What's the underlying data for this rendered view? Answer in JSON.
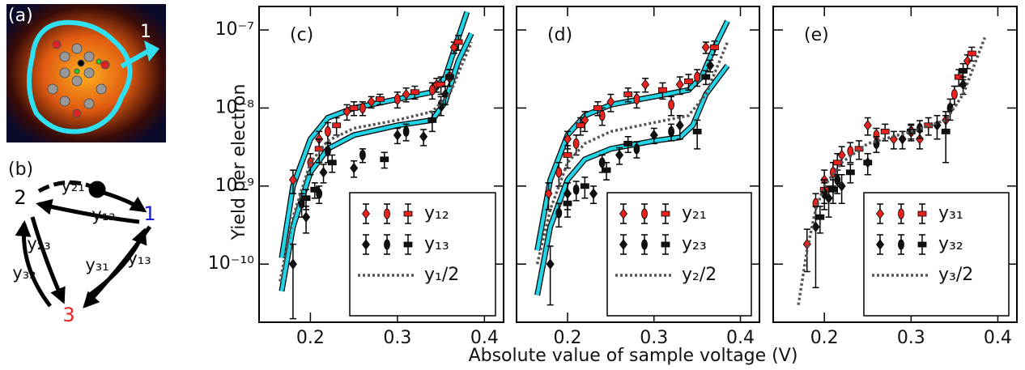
{
  "image": {
    "label": "(a)",
    "tip_label": "1"
  },
  "diagram": {
    "label": "(b)",
    "nodes": [
      {
        "label": "1",
        "color": "#1a1ad6"
      },
      {
        "label": "2",
        "color": "#000000"
      },
      {
        "label": "3",
        "color": "#e8221f"
      }
    ],
    "edges": [
      {
        "label": "y₂₁"
      },
      {
        "label": "y₁₂"
      },
      {
        "label": "y₂₃"
      },
      {
        "label": "y₃₂"
      },
      {
        "label": "y₃₁"
      },
      {
        "label": "y₁₃"
      }
    ]
  },
  "figure": {
    "ylabel": "Yield per electron",
    "xlabel": "Absolute value of sample voltage (V)"
  },
  "chart_data": [
    {
      "type": "scatter",
      "label": "(c)",
      "log_y": true,
      "xlim": [
        0.141,
        0.422
      ],
      "xticks": [
        0.2,
        0.3,
        0.4
      ],
      "ylim": [
        1.8e-11,
        2e-07
      ],
      "yticks": [
        {
          "value": 1e-10,
          "label": "10⁻¹⁰"
        },
        {
          "value": 1e-09,
          "label": "10⁻⁹"
        },
        {
          "value": 1e-08,
          "label": "10⁻⁸"
        },
        {
          "value": 1e-07,
          "label": "10⁻⁷"
        }
      ],
      "fits": [
        {
          "color": "#22d3e6",
          "x": [
            0.167,
            0.18,
            0.2,
            0.22,
            0.25,
            0.3,
            0.34,
            0.355,
            0.37,
            0.38
          ],
          "values": [
            1.2e-10,
            1e-09,
            4e-09,
            7.5e-09,
            1e-08,
            1.3e-08,
            1.6e-08,
            2.5e-08,
            8e-08,
            1.7e-07
          ]
        },
        {
          "color": "#22d3e6",
          "x": [
            0.167,
            0.18,
            0.2,
            0.22,
            0.25,
            0.3,
            0.34,
            0.355,
            0.37,
            0.385
          ],
          "values": [
            4.5e-11,
            3e-10,
            1.5e-09,
            3e-09,
            4.5e-09,
            6e-09,
            7e-09,
            1.2e-08,
            4e-08,
            9e-08
          ]
        }
      ],
      "series": [
        {
          "name": "y₁₂",
          "color": "#e8221f",
          "sets": [
            {
              "marker": "diamond",
              "x": [
                0.18,
                0.21,
                0.242,
                0.27,
                0.31,
                0.345,
                0.365
              ],
              "values": [
                1.2e-09,
                4e-09,
                9e-09,
                1.2e-08,
                1.5e-08,
                2e-08,
                6e-08
              ],
              "errors": [
                4e-10,
                1e-09,
                2e-09,
                2e-09,
                3e-09,
                4e-09,
                1e-08
              ]
            },
            {
              "marker": "ellipse",
              "x": [
                0.2,
                0.22,
                0.26,
                0.3,
                0.34,
                0.36
              ],
              "values": [
                2e-09,
                5e-09,
                1e-08,
                1.3e-08,
                1.7e-08,
                2.5e-08
              ],
              "errors": [
                6e-10,
                1.5e-09,
                2e-09,
                3e-09,
                4e-09,
                6e-09
              ]
            },
            {
              "marker": "square",
              "x": [
                0.21,
                0.23,
                0.25,
                0.28,
                0.32,
                0.35,
                0.37
              ],
              "values": [
                3e-09,
                6e-09,
                1e-08,
                1.3e-08,
                1.6e-08,
                2e-08,
                7e-08
              ],
              "errors": [
                1e-09,
                1.5e-09,
                2e-09,
                2e-09,
                3e-09,
                5e-09,
                1.5e-08
              ]
            }
          ]
        },
        {
          "name": "y₁₃",
          "color": "#111111",
          "sets": [
            {
              "marker": "diamond",
              "x": [
                0.18,
                0.195,
                0.215,
                0.25,
                0.3,
                0.33,
                0.355
              ],
              "values": [
                1e-10,
                4e-10,
                1.5e-09,
                1.7e-09,
                4.5e-09,
                4.3e-09,
                1.5e-08
              ],
              "errors": [
                8e-11,
                1.5e-10,
                4e-10,
                4e-10,
                1e-09,
                1e-09,
                4e-09
              ]
            },
            {
              "marker": "ellipse",
              "x": [
                0.19,
                0.21,
                0.22,
                0.26,
                0.31,
                0.35
              ],
              "values": [
                6e-10,
                8e-10,
                2.8e-09,
                2.5e-09,
                5e-09,
                1.1e-08
              ],
              "errors": [
                2e-10,
                2e-10,
                8e-10,
                5e-10,
                1.2e-09,
                3e-09
              ]
            },
            {
              "marker": "square",
              "x": [
                0.195,
                0.205,
                0.225,
                0.285,
                0.34,
                0.36
              ],
              "values": [
                7e-10,
                9e-10,
                2e-09,
                2.2e-09,
                7e-09,
                2.5e-08
              ],
              "errors": [
                2e-10,
                2e-10,
                5e-10,
                5e-10,
                2e-09,
                6e-09
              ]
            }
          ]
        },
        {
          "name": "y₁/2",
          "color": "#555555",
          "style": "dotted",
          "x": [
            0.165,
            0.18,
            0.2,
            0.22,
            0.25,
            0.3,
            0.34,
            0.36,
            0.385
          ],
          "values": [
            6e-11,
            4e-10,
            2e-09,
            3.8e-09,
            5.5e-09,
            7e-09,
            9e-09,
            1.5e-08,
            7e-08
          ]
        }
      ]
    },
    {
      "type": "scatter",
      "label": "(d)",
      "log_y": true,
      "xlim": [
        0.141,
        0.422
      ],
      "xticks": [
        0.2,
        0.3,
        0.4
      ],
      "ylim": [
        1.8e-11,
        2e-07
      ],
      "yticks": [
        1e-10,
        1e-09,
        1e-08,
        1e-07
      ],
      "fits": [
        {
          "color": "#22d3e6",
          "x": [
            0.165,
            0.18,
            0.2,
            0.22,
            0.25,
            0.3,
            0.34,
            0.355,
            0.37,
            0.385
          ],
          "values": [
            1.5e-10,
            1.2e-09,
            4.5e-09,
            8e-09,
            1.1e-08,
            1.4e-08,
            1.7e-08,
            2.5e-08,
            6e-08,
            1.3e-07
          ]
        },
        {
          "color": "#22d3e6",
          "x": [
            0.165,
            0.18,
            0.2,
            0.22,
            0.25,
            0.3,
            0.33,
            0.345,
            0.36,
            0.385
          ],
          "values": [
            4e-11,
            3e-10,
            1.2e-09,
            2.2e-09,
            3e-09,
            3.8e-09,
            4.2e-09,
            6e-09,
            1.5e-08,
            3.5e-08
          ]
        }
      ],
      "series": [
        {
          "name": "y₂₁",
          "color": "#e8221f",
          "sets": [
            {
              "marker": "diamond",
              "x": [
                0.178,
                0.2,
                0.22,
                0.25,
                0.29,
                0.33,
                0.36
              ],
              "values": [
                8e-10,
                4e-09,
                7e-09,
                1.2e-08,
                2e-08,
                2e-08,
                6e-08
              ],
              "errors": [
                3e-10,
                1e-09,
                2e-09,
                3e-09,
                4e-09,
                5e-09,
                1e-08
              ]
            },
            {
              "marker": "ellipse",
              "x": [
                0.19,
                0.21,
                0.24,
                0.28,
                0.32,
                0.35
              ],
              "values": [
                1.5e-09,
                3.5e-09,
                8e-09,
                1.3e-08,
                1.1e-08,
                2.5e-08
              ],
              "errors": [
                5e-10,
                1e-09,
                2e-09,
                3e-09,
                3e-09,
                6e-09
              ]
            },
            {
              "marker": "square",
              "x": [
                0.2,
                0.215,
                0.235,
                0.27,
                0.31,
                0.34,
                0.37
              ],
              "values": [
                2.5e-09,
                6e-09,
                1e-08,
                1.5e-08,
                1.7e-08,
                2.2e-08,
                6e-08
              ],
              "errors": [
                8e-10,
                1.5e-09,
                2e-09,
                3e-09,
                4e-09,
                5e-09,
                1.2e-08
              ]
            }
          ]
        },
        {
          "name": "y₂₃",
          "color": "#111111",
          "sets": [
            {
              "marker": "diamond",
              "x": [
                0.18,
                0.2,
                0.23,
                0.26,
                0.3,
                0.33,
                0.365
              ],
              "values": [
                1e-10,
                8e-10,
                8e-10,
                2.5e-09,
                4.5e-09,
                6e-09,
                3.5e-08
              ],
              "errors": [
                7e-11,
                3e-10,
                2e-10,
                6e-10,
                1e-09,
                2e-09,
                6e-09
              ]
            },
            {
              "marker": "ellipse",
              "x": [
                0.19,
                0.21,
                0.24,
                0.28,
                0.32
              ],
              "values": [
                4.5e-10,
                9e-10,
                2e-09,
                3e-09,
                5e-09
              ],
              "errors": [
                1.5e-10,
                2.5e-10,
                5e-10,
                7e-10,
                1.2e-09
              ]
            },
            {
              "marker": "square",
              "x": [
                0.2,
                0.22,
                0.245,
                0.27,
                0.35,
                0.36
              ],
              "values": [
                6e-10,
                1e-09,
                1.6e-09,
                3.5e-09,
                5e-09,
                2.5e-08
              ],
              "errors": [
                2e-10,
                3e-10,
                4e-10,
                8e-10,
                2e-09,
                5e-09
              ]
            }
          ]
        },
        {
          "name": "y₂/2",
          "color": "#555555",
          "style": "dotted",
          "x": [
            0.165,
            0.18,
            0.2,
            0.22,
            0.25,
            0.3,
            0.34,
            0.36,
            0.385
          ],
          "values": [
            1e-10,
            5e-10,
            2e-09,
            3.5e-09,
            5e-09,
            6.5e-09,
            8e-09,
            1.5e-08,
            7e-08
          ]
        }
      ]
    },
    {
      "type": "scatter",
      "label": "(e)",
      "log_y": true,
      "xlim": [
        0.141,
        0.422
      ],
      "xticks": [
        0.2,
        0.3,
        0.4
      ],
      "ylim": [
        1.8e-11,
        2e-07
      ],
      "yticks": [
        1e-10,
        1e-09,
        1e-08,
        1e-07
      ],
      "series": [
        {
          "name": "y₃₁",
          "color": "#e8221f",
          "sets": [
            {
              "marker": "diamond",
              "x": [
                0.18,
                0.2,
                0.22,
                0.25,
                0.28,
                0.31,
                0.34,
                0.365
              ],
              "values": [
                1.8e-10,
                1.2e-09,
                2.5e-09,
                6e-09,
                4e-09,
                4e-09,
                7e-09,
                4e-08
              ],
              "errors": [
                1e-10,
                4e-10,
                7e-10,
                1.5e-09,
                1e-09,
                1e-09,
                2e-09,
                8e-09
              ]
            },
            {
              "marker": "ellipse",
              "x": [
                0.19,
                0.21,
                0.23,
                0.26,
                0.3,
                0.35
              ],
              "values": [
                6e-10,
                1.5e-09,
                2.8e-09,
                4.5e-09,
                5e-09,
                1.5e-08
              ],
              "errors": [
                2e-10,
                5e-10,
                8e-10,
                1e-09,
                1.2e-09,
                4e-09
              ]
            },
            {
              "marker": "square",
              "x": [
                0.2,
                0.215,
                0.24,
                0.27,
                0.32,
                0.355,
                0.37
              ],
              "values": [
                9e-10,
                2e-09,
                3e-09,
                5e-09,
                6e-09,
                2.5e-08,
                5e-08
              ],
              "errors": [
                3e-10,
                6e-10,
                8e-10,
                1.2e-09,
                1.5e-09,
                6e-09,
                1e-08
              ]
            }
          ]
        },
        {
          "name": "y₃₂",
          "color": "#111111",
          "sets": [
            {
              "marker": "diamond",
              "x": [
                0.19,
                0.205,
                0.22,
                0.25,
                0.29,
                0.33,
                0.36
              ],
              "values": [
                3e-10,
                7e-10,
                1e-09,
                2e-09,
                4e-09,
                6e-09,
                2e-08
              ],
              "errors": [
                2.5e-10,
                3e-10,
                4e-10,
                6e-10,
                1e-09,
                2e-09,
                5e-09
              ]
            },
            {
              "marker": "ellipse",
              "x": [
                0.2,
                0.215,
                0.26,
                0.31,
                0.345
              ],
              "values": [
                8e-10,
                1.2e-09,
                3.5e-09,
                5.5e-09,
                1e-08
              ],
              "errors": [
                3e-10,
                4e-10,
                8e-10,
                1.4e-09,
                3e-09
              ]
            },
            {
              "marker": "square",
              "x": [
                0.195,
                0.21,
                0.23,
                0.25,
                0.3,
                0.34,
                0.36
              ],
              "values": [
                4e-10,
                9e-10,
                1.5e-09,
                2e-09,
                5e-09,
                5e-09,
                3e-08
              ],
              "errors": [
                1.5e-10,
                3e-10,
                4e-10,
                6e-10,
                1e-09,
                3e-09,
                7e-09
              ]
            }
          ]
        },
        {
          "name": "y₃/2",
          "color": "#555555",
          "style": "dotted",
          "x": [
            0.17,
            0.18,
            0.19,
            0.2,
            0.22,
            0.25,
            0.3,
            0.34,
            0.36,
            0.385
          ],
          "values": [
            3e-11,
            1.5e-10,
            5e-10,
            1e-09,
            2e-09,
            3.5e-09,
            5e-09,
            7e-09,
            1.5e-08,
            8e-08
          ]
        }
      ]
    }
  ]
}
